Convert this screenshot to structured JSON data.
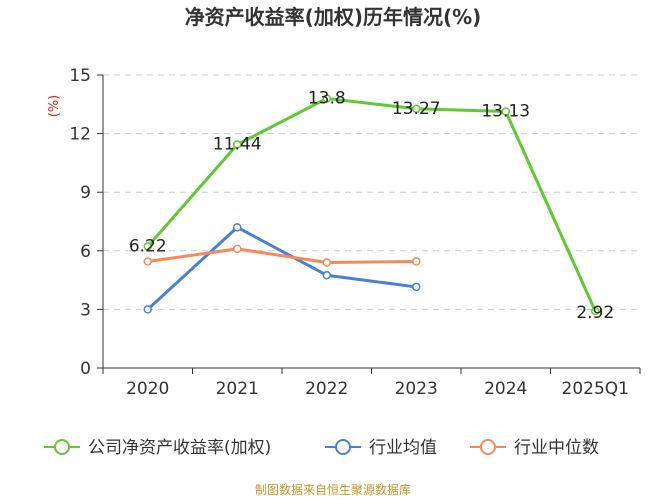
{
  "chart_data": {
    "type": "line",
    "title": "净资产收益率(加权)历年情况(%)",
    "ylabel": "(%)",
    "categories": [
      "2020",
      "2021",
      "2022",
      "2023",
      "2024",
      "2025Q1"
    ],
    "ylim": [
      0,
      15
    ],
    "yticks": [
      "0",
      "3",
      "6",
      "9",
      "12",
      "15"
    ],
    "grid": true,
    "legend_position": "bottom",
    "series": [
      {
        "name": "公司净资产收益率(加权)",
        "color": "#5fc832",
        "values": [
          6.22,
          11.44,
          13.8,
          13.27,
          13.13,
          2.92
        ],
        "labels": [
          "6.22",
          "11.44",
          "13.8",
          "13.27",
          "13.13",
          "2.92"
        ]
      },
      {
        "name": "行业均值",
        "color": "#4a7fd6",
        "values": [
          3.0,
          7.2,
          4.75,
          4.15,
          null,
          null
        ]
      },
      {
        "name": "行业中位数",
        "color": "#f5895a",
        "values": [
          5.45,
          6.1,
          5.4,
          5.45,
          null,
          null
        ]
      }
    ],
    "source": "制图数据来自恒生聚源数据库"
  }
}
